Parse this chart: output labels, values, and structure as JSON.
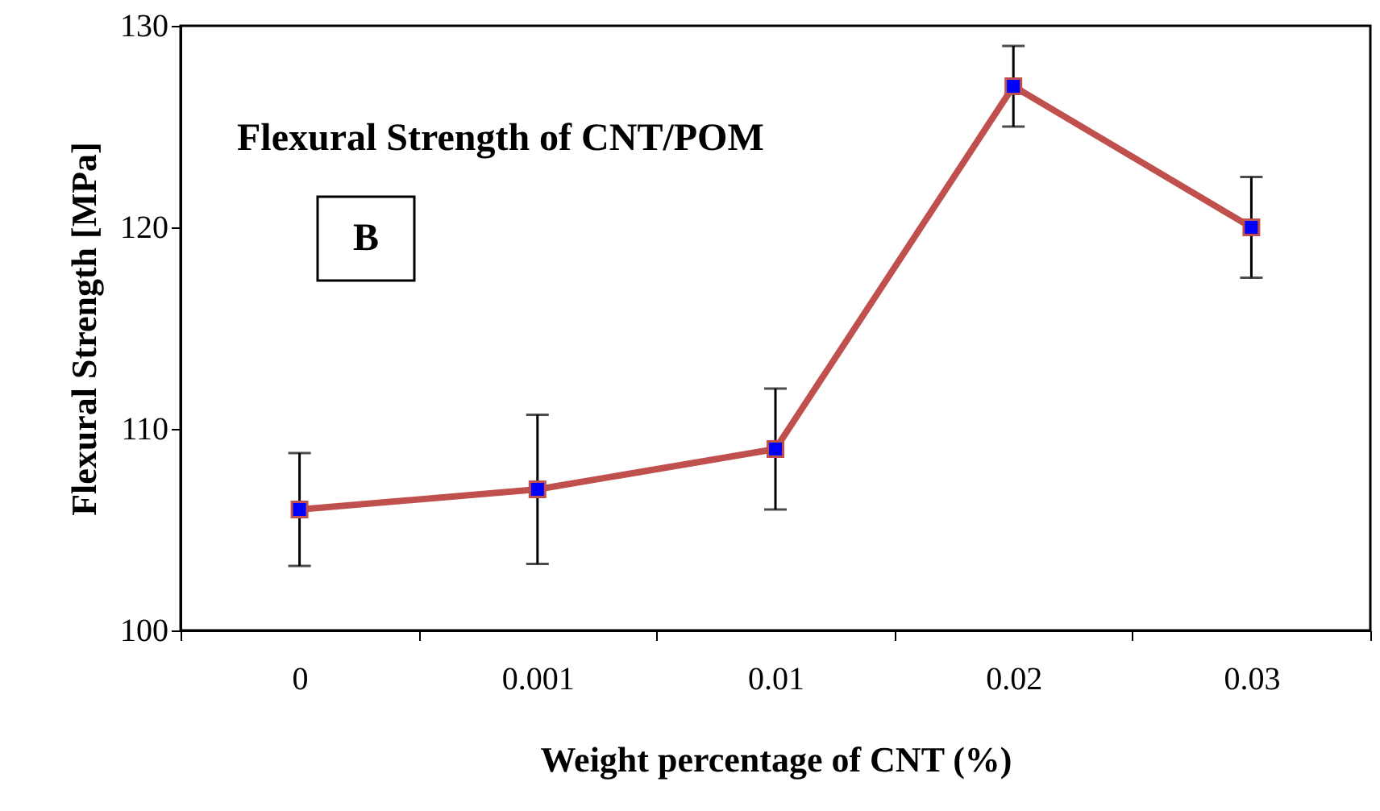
{
  "chart_data": {
    "type": "line",
    "title": "Flexural Strength of CNT/POM",
    "xlabel": "Weight percentage of CNT (%)",
    "ylabel": "Flexural Strength [MPa]",
    "categories": [
      "0",
      "0.001",
      "0.01",
      "0.02",
      "0.03"
    ],
    "series": [
      {
        "color": "#c0504d",
        "values": [
          106,
          107,
          109,
          127,
          120
        ],
        "errors": [
          2.8,
          3.7,
          3,
          2,
          2.5
        ]
      }
    ],
    "marker": "square",
    "ylim": [
      100,
      130
    ],
    "yticks": [
      100,
      110,
      120,
      130
    ],
    "grid": false,
    "annotations": [
      "B"
    ]
  }
}
